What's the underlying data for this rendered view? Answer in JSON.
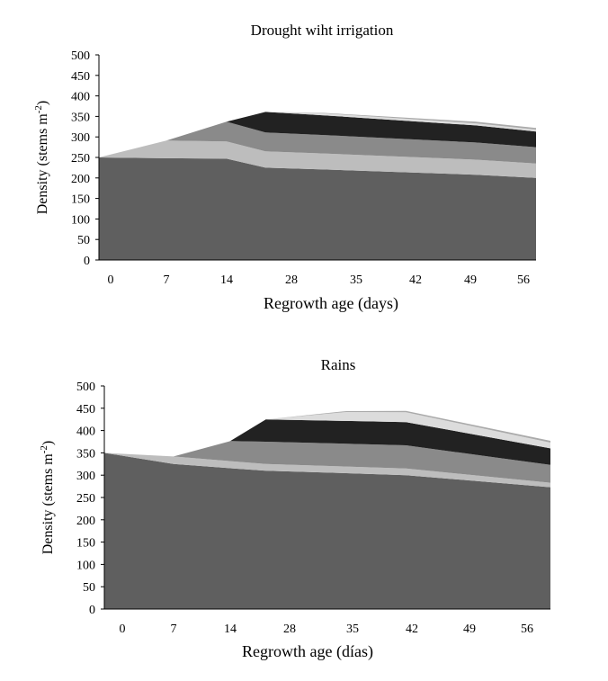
{
  "chart_data": [
    {
      "type": "area",
      "stacked": true,
      "title": "Drought wiht irrigation",
      "xlabel": "Regrowth age (days)",
      "ylabel": "Density  (stems m",
      "ylabel_sup": "-2",
      "ylabel_close": ")",
      "ylim": [
        0,
        500
      ],
      "yticks": [
        "0",
        "50",
        "100",
        "150",
        "200",
        "250",
        "300",
        "350",
        "400",
        "450",
        "500"
      ],
      "categories": [
        "0",
        "7",
        "14",
        "28",
        "35",
        "42",
        "49",
        "56"
      ],
      "x_positions": [
        0,
        1,
        2,
        3,
        4,
        5,
        6,
        7
      ],
      "series": [
        {
          "color": "#5f5f5f",
          "x": [
            0,
            1,
            2,
            2.6,
            7.7
          ],
          "values": [
            250,
            248,
            247,
            225,
            200
          ]
        },
        {
          "color": "#bdbdbd",
          "x": [
            0,
            1,
            2,
            2.6,
            7.7
          ],
          "values": [
            0,
            43,
            42,
            40,
            35
          ]
        },
        {
          "color": "#8a8a8a",
          "x": [
            0,
            1,
            2,
            2.6,
            7.7
          ],
          "values": [
            0,
            0,
            48,
            46,
            40
          ]
        },
        {
          "color": "#222222",
          "x": [
            0,
            1,
            2,
            2.6,
            7.7
          ],
          "values": [
            0,
            0,
            0,
            50,
            38
          ]
        },
        {
          "color": "#dcdcdc",
          "x": [
            0,
            1,
            2,
            2.6,
            3.5,
            6.1,
            7.7
          ],
          "values": [
            0,
            0,
            0,
            0,
            5,
            5,
            5
          ]
        },
        {
          "color": "#aaaaaa",
          "x": [
            0,
            1,
            2,
            2.6,
            6.1,
            7.7
          ],
          "values": [
            0,
            0,
            0,
            0,
            4,
            4
          ]
        }
      ]
    },
    {
      "type": "area",
      "stacked": true,
      "title": "Rains",
      "xlabel": "Regrowth age (días)",
      "ylabel": "Density  (stems m",
      "ylabel_sup": "-2",
      "ylabel_close": ")",
      "ylim": [
        0,
        500
      ],
      "yticks": [
        "0",
        "50",
        "100",
        "150",
        "200",
        "250",
        "300",
        "350",
        "400",
        "450",
        "500"
      ],
      "categories": [
        "0",
        "7",
        "14",
        "28",
        "35",
        "42",
        "49",
        "56"
      ],
      "x_positions": [
        0,
        1,
        2,
        3,
        4,
        5,
        6,
        7
      ],
      "series": [
        {
          "color": "#5f5f5f",
          "x": [
            0,
            1,
            2.6,
            4.9,
            7.7
          ],
          "values": [
            350,
            325,
            310,
            300,
            273
          ]
        },
        {
          "color": "#bdbdbd",
          "x": [
            0,
            1,
            2.6,
            4.9,
            7.7
          ],
          "values": [
            0,
            17,
            15,
            15,
            10
          ]
        },
        {
          "color": "#8a8a8a",
          "x": [
            0,
            1,
            2,
            2.6,
            4.9,
            7.7
          ],
          "values": [
            0,
            0,
            45,
            50,
            52,
            40
          ]
        },
        {
          "color": "#222222",
          "x": [
            0,
            1,
            2,
            2.6,
            4.9,
            7.7
          ],
          "values": [
            0,
            0,
            0,
            50,
            52,
            37
          ]
        },
        {
          "color": "#dcdcdc",
          "x": [
            0,
            1,
            2,
            2.6,
            3.9,
            4.9,
            7.7
          ],
          "values": [
            0,
            0,
            0,
            0,
            20,
            22,
            13
          ]
        },
        {
          "color": "#aaaaaa",
          "x": [
            0,
            1,
            2,
            2.6,
            3.9,
            4.9,
            7.7
          ],
          "values": [
            0,
            0,
            0,
            0,
            2,
            3,
            4
          ]
        }
      ]
    }
  ]
}
